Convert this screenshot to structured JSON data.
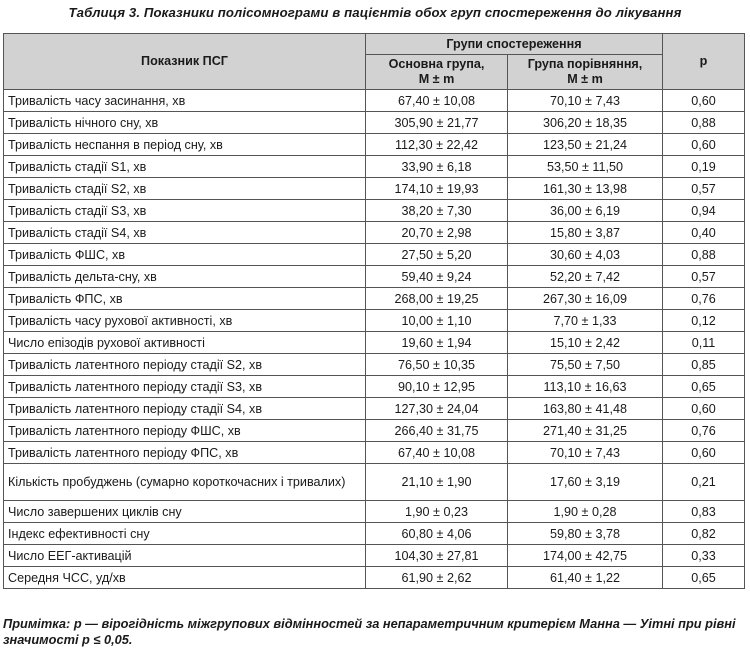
{
  "caption": "Таблиця 3. Показники полісомнограми в пацієнтів обох груп спостереження до лікування",
  "header": {
    "indicator": "Показник ПСГ",
    "groups": "Групи спостереження",
    "main_group": "Основна група,",
    "main_group_sub": "M ± m",
    "comparison_group": "Група порівняння,",
    "comparison_group_sub": "M ± m",
    "p": "p"
  },
  "rows": [
    {
      "name": "Тривалість часу засинання, хв",
      "main": "67,40 ± 10,08",
      "comp": "70,10 ± 7,43",
      "p": "0,60"
    },
    {
      "name": "Тривалість нічного сну, хв",
      "main": "305,90 ± 21,77",
      "comp": "306,20 ± 18,35",
      "p": "0,88"
    },
    {
      "name": "Тривалість неспання в період сну, хв",
      "main": "112,30 ± 22,42",
      "comp": "123,50 ± 21,24",
      "p": "0,60"
    },
    {
      "name": "Тривалість стадії S1, хв",
      "main": "33,90 ± 6,18",
      "comp": "53,50 ± 11,50",
      "p": "0,19"
    },
    {
      "name": "Тривалість стадії S2, хв",
      "main": "174,10 ± 19,93",
      "comp": "161,30 ± 13,98",
      "p": "0,57"
    },
    {
      "name": "Тривалість стадії S3, хв",
      "main": "38,20 ± 7,30",
      "comp": "36,00 ± 6,19",
      "p": "0,94"
    },
    {
      "name": "Тривалість стадії S4, хв",
      "main": "20,70 ± 2,98",
      "comp": "15,80 ± 3,87",
      "p": "0,40"
    },
    {
      "name": "Тривалість ФШС, хв",
      "main": "27,50 ± 5,20",
      "comp": "30,60 ± 4,03",
      "p": "0,88"
    },
    {
      "name": "Тривалість дельта-сну, хв",
      "main": "59,40 ± 9,24",
      "comp": "52,20 ± 7,42",
      "p": "0,57"
    },
    {
      "name": "Тривалість ФПС, хв",
      "main": "268,00 ± 19,25",
      "comp": "267,30 ± 16,09",
      "p": "0,76"
    },
    {
      "name": "Тривалість часу рухової активності, хв",
      "main": "10,00 ± 1,10",
      "comp": "7,70 ± 1,33",
      "p": "0,12"
    },
    {
      "name": "Число епізодів рухової активності",
      "main": "19,60 ± 1,94",
      "comp": "15,10 ± 2,42",
      "p": "0,11"
    },
    {
      "name": "Тривалість латентного періоду стадії S2, хв",
      "main": "76,50 ± 10,35",
      "comp": "75,50 ± 7,50",
      "p": "0,85"
    },
    {
      "name": "Тривалість латентного періоду стадії S3, хв",
      "main": "90,10 ± 12,95",
      "comp": "113,10 ± 16,63",
      "p": "0,65"
    },
    {
      "name": "Тривалість латентного періоду стадії S4, хв",
      "main": "127,30 ± 24,04",
      "comp": "163,80 ± 41,48",
      "p": "0,60"
    },
    {
      "name": "Тривалість латентного періоду ФШС, хв",
      "main": "266,40 ± 31,75",
      "comp": "271,40 ± 31,25",
      "p": "0,76"
    },
    {
      "name": "Тривалість латентного періоду ФПС, хв",
      "main": "67,40 ± 10,08",
      "comp": "70,10 ± 7,43",
      "p": "0,60"
    },
    {
      "name": "Кількість пробуджень (сумарно короткочасних і тривалих)",
      "main": "21,10 ± 1,90",
      "comp": "17,60 ± 3,19",
      "p": "0,21"
    },
    {
      "name": "Число завершених циклів сну",
      "main": "1,90 ± 0,23",
      "comp": "1,90 ± 0,28",
      "p": "0,83"
    },
    {
      "name": "Індекс ефективності сну",
      "main": "60,80 ± 4,06",
      "comp": "59,80 ± 3,78",
      "p": "0,82"
    },
    {
      "name": "Число ЕЕГ-активацій",
      "main": "104,30 ± 27,81",
      "comp": "174,00 ± 42,75",
      "p": "0,33"
    },
    {
      "name": "Середня ЧСС, уд/хв",
      "main": "61,90 ± 2,62",
      "comp": "61,40 ± 1,22",
      "p": "0,65"
    }
  ],
  "note": "Примітка: p — вірогідність міжгрупових відмінностей за непараметричним критерієм Манна — Уітні при рівні значимості p ≤ 0,05.",
  "colors": {
    "header_bg": "#d2d2d2",
    "border": "#555555"
  }
}
